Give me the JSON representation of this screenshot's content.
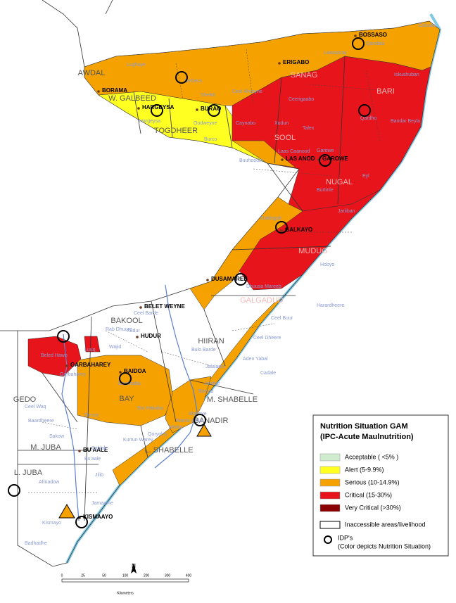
{
  "legend": {
    "title": "Nutrition Situation GAM",
    "subtitle": "(IPC-Acute Maulnutrition)",
    "items": [
      {
        "label": "Acceptable  ( <5% )",
        "color": "#cfeccf"
      },
      {
        "label": "Alert  (5-9.9%)",
        "color": "#ffff22"
      },
      {
        "label": "Serious  (10-14.9%)",
        "color": "#f5a200"
      },
      {
        "label": "Critical (15-30%)",
        "color": "#e8141b"
      },
      {
        "label": "Very Critical (>30%)",
        "color": "#8b0000"
      }
    ],
    "inaccessible": "Inaccessible areas/livelihood",
    "idp": "IDP's",
    "idp_note": "(Color depicts Nutrition Situation)"
  },
  "regions": [
    "AWDAL",
    "W. GALBEED",
    "TOGDHEER",
    "BAKOOL",
    "HIIRAN",
    "GEDO",
    "BAY",
    "M. SHABELLE",
    "BANADIR",
    "M. JUBA",
    "L. SHABELLE",
    "L. JUBA"
  ],
  "regions_on_color": [
    "SANAG",
    "BARI",
    "SOOL",
    "NUGAL",
    "MUDUG",
    "GALGADUD"
  ],
  "towns": [
    "BOSSASO",
    "ERIGABO",
    "BORAMA",
    "HARGEYSA",
    "BURAO",
    "LAS ANOD",
    "GAROWE",
    "GALKAYO",
    "DUSAMAREB",
    "BELET WEYNE",
    "HUDUR",
    "GARBAHAREY",
    "BAIDOA",
    "BU'AALE",
    "KISMAAYO"
  ],
  "districts": [
    "Lughaye",
    "Berbera",
    "Sheikh",
    "Ceel Afweyne",
    "Ceerigaabo",
    "Laasqoray",
    "Qandala",
    "Caluula",
    "Iskushuban",
    "Qardho",
    "Bandar Beyla",
    "Caynabo",
    "Xudun",
    "Talex",
    "Laas Caanood",
    "Garowe",
    "Eyl",
    "Burtinle",
    "Oodweyne",
    "Burco",
    "Buuhoodle",
    "Hargeysa",
    "Galdogob",
    "Jariiban",
    "Hobyo",
    "Dhuusa Mareeb",
    "Harardheere",
    "Ceel Buur",
    "Ceel Barde",
    "Rab Dhuure",
    "Xudur",
    "Wajid",
    "Bulo Barde",
    "Ceel Dheere",
    "Aden Yabal",
    "Jalalaqsi",
    "Cadale",
    "Baydhaba",
    "Bur Hakaba",
    "Dinsor",
    "Ceel Waq",
    "Baardheere",
    "Sakow",
    "Sablale",
    "Kurtun Warey",
    "Qoryoley",
    "Marka",
    "Bu'aale",
    "Jilib",
    "Afmadow",
    "Jamaame",
    "Kismayo",
    "Badhadhe",
    "Garbaharey",
    "Luuq",
    "Beled Hawo",
    "Jowhar",
    "Balcad",
    "Afgooye",
    "Wanla Weyn"
  ],
  "north": "N",
  "scale": {
    "unit": "Kilometers",
    "ticks": [
      "0",
      "25",
      "50",
      "100",
      "200",
      "300",
      "400"
    ]
  }
}
